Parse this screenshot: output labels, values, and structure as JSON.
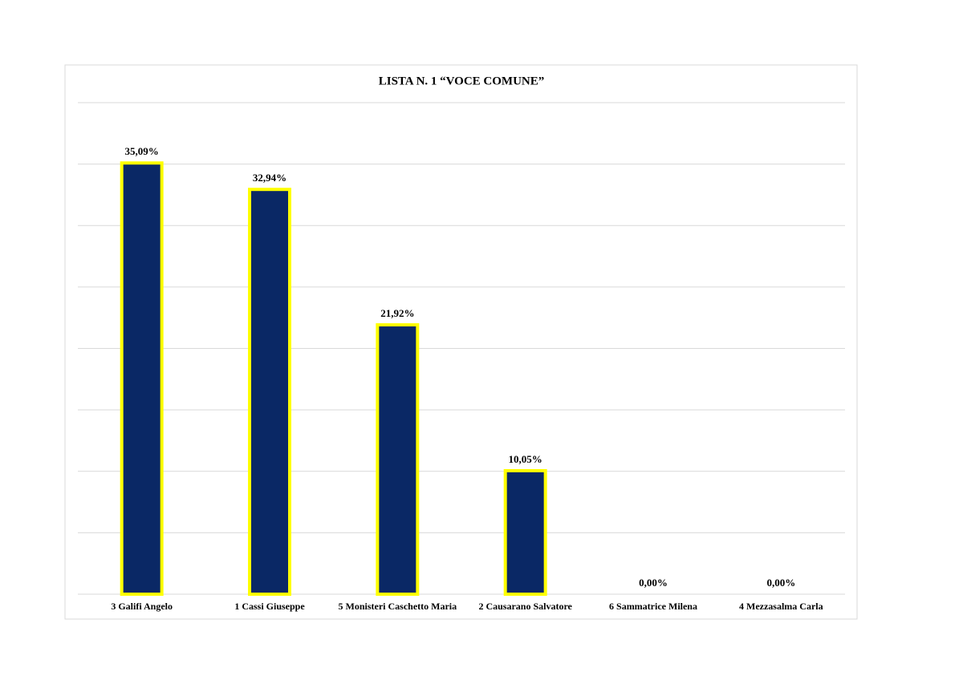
{
  "chart_data": {
    "type": "bar",
    "title": "LISTA N. 1  “VOCE COMUNE”",
    "categories": [
      "3 Galifi Angelo",
      "1 Cassi Giuseppe",
      "5 Monisteri Caschetto Maria",
      "2 Causarano Salvatore",
      "6 Sammatrice Milena",
      "4 Mezzasalma Carla"
    ],
    "values": [
      35.09,
      32.94,
      21.92,
      10.05,
      0,
      0
    ],
    "value_labels": [
      "35,09%",
      "32,94%",
      "21,92%",
      "10,05%",
      "0,00%",
      "0,00%"
    ],
    "color": "#0a2865",
    "edge_color": "#ffff00",
    "ylim": [
      0,
      40
    ],
    "yticks": [
      0,
      5,
      10,
      15,
      20,
      25,
      30,
      35,
      40
    ],
    "grid": true
  }
}
